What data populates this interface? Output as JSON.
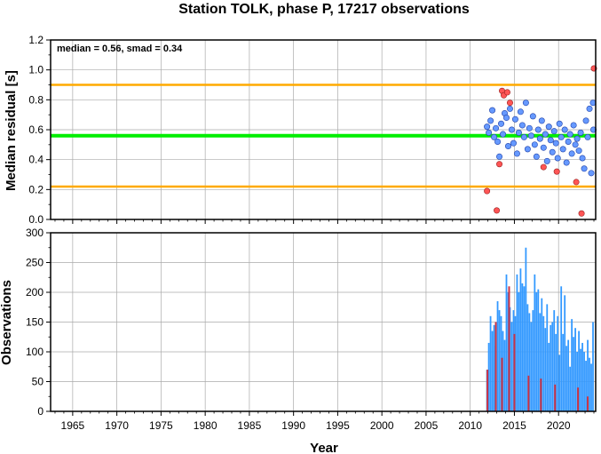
{
  "chart_data": [
    {
      "type": "scatter",
      "title": "Station TOLK, phase P, 17217 observations",
      "ylabel": "Median residual [s]",
      "annotation": "median = 0.56, smad = 0.34",
      "xlim": [
        1962.5,
        2024.2
      ],
      "ylim": [
        0,
        1.2
      ],
      "yticks": [
        "0.0",
        "0.2",
        "0.4",
        "0.6",
        "0.8",
        "1.0",
        "1.2"
      ],
      "grid": true,
      "colors": {
        "normal": "#6699ff",
        "outlier": "#ff5555",
        "median_line": "#00ee00",
        "bounds_line": "#ffaa00"
      },
      "median_line": 0.56,
      "bound_lines": [
        0.22,
        0.9
      ],
      "normal_points": [
        [
          2011.9,
          0.62
        ],
        [
          2012.1,
          0.58
        ],
        [
          2012.3,
          0.66
        ],
        [
          2012.5,
          0.73
        ],
        [
          2012.7,
          0.55
        ],
        [
          2012.9,
          0.61
        ],
        [
          2013.1,
          0.52
        ],
        [
          2013.3,
          0.42
        ],
        [
          2013.5,
          0.64
        ],
        [
          2013.7,
          0.57
        ],
        [
          2013.9,
          0.71
        ],
        [
          2014.1,
          0.68
        ],
        [
          2014.3,
          0.49
        ],
        [
          2014.5,
          0.74
        ],
        [
          2014.7,
          0.6
        ],
        [
          2014.9,
          0.51
        ],
        [
          2015.1,
          0.67
        ],
        [
          2015.3,
          0.44
        ],
        [
          2015.5,
          0.58
        ],
        [
          2015.7,
          0.72
        ],
        [
          2015.9,
          0.63
        ],
        [
          2016.1,
          0.55
        ],
        [
          2016.3,
          0.78
        ],
        [
          2016.5,
          0.47
        ],
        [
          2016.7,
          0.61
        ],
        [
          2016.9,
          0.56
        ],
        [
          2017.1,
          0.69
        ],
        [
          2017.3,
          0.5
        ],
        [
          2017.5,
          0.42
        ],
        [
          2017.7,
          0.6
        ],
        [
          2017.9,
          0.54
        ],
        [
          2018.1,
          0.66
        ],
        [
          2018.3,
          0.48
        ],
        [
          2018.5,
          0.57
        ],
        [
          2018.7,
          0.39
        ],
        [
          2018.9,
          0.62
        ],
        [
          2019.1,
          0.53
        ],
        [
          2019.3,
          0.45
        ],
        [
          2019.5,
          0.59
        ],
        [
          2019.7,
          0.51
        ],
        [
          2019.9,
          0.41
        ],
        [
          2020.1,
          0.64
        ],
        [
          2020.3,
          0.55
        ],
        [
          2020.5,
          0.47
        ],
        [
          2020.7,
          0.6
        ],
        [
          2020.9,
          0.38
        ],
        [
          2021.1,
          0.52
        ],
        [
          2021.3,
          0.57
        ],
        [
          2021.5,
          0.44
        ],
        [
          2021.7,
          0.63
        ],
        [
          2021.9,
          0.5
        ],
        [
          2022.1,
          0.54
        ],
        [
          2022.3,
          0.46
        ],
        [
          2022.5,
          0.58
        ],
        [
          2022.7,
          0.41
        ],
        [
          2022.9,
          0.34
        ],
        [
          2023.1,
          0.66
        ],
        [
          2023.3,
          0.55
        ],
        [
          2023.5,
          0.74
        ],
        [
          2023.7,
          0.31
        ],
        [
          2023.9,
          0.78
        ],
        [
          2023.95,
          0.6
        ]
      ],
      "outlier_points": [
        [
          2011.9,
          0.19
        ],
        [
          2013.0,
          0.06
        ],
        [
          2013.3,
          0.37
        ],
        [
          2013.6,
          0.86
        ],
        [
          2013.8,
          0.83
        ],
        [
          2014.2,
          0.85
        ],
        [
          2014.5,
          0.78
        ],
        [
          2018.3,
          0.35
        ],
        [
          2019.8,
          0.32
        ],
        [
          2022.0,
          0.25
        ],
        [
          2022.6,
          0.04
        ],
        [
          2024.0,
          1.01
        ]
      ]
    },
    {
      "type": "bar",
      "ylabel": "Observations",
      "xlabel": "Year",
      "xlim": [
        1962.5,
        2024.2
      ],
      "ylim": [
        0,
        300
      ],
      "yticks": [
        "0",
        "50",
        "100",
        "150",
        "200",
        "250",
        "300"
      ],
      "xticks": [
        "1965",
        "1970",
        "1975",
        "1980",
        "1985",
        "1990",
        "1995",
        "2000",
        "2005",
        "2010",
        "2015",
        "2020"
      ],
      "grid": true,
      "colors": {
        "all": "#3399ff",
        "outliers": "#cc3344"
      },
      "series": [
        {
          "x": [
            2011.9,
            2012.1,
            2012.3,
            2012.5,
            2012.7,
            2012.9,
            2013.1,
            2013.3,
            2013.5,
            2013.7,
            2013.9,
            2014.1,
            2014.3,
            2014.5,
            2014.7,
            2014.9,
            2015.1,
            2015.3,
            2015.5,
            2015.7,
            2015.9,
            2016.1,
            2016.3,
            2016.5,
            2016.7,
            2016.9,
            2017.1,
            2017.3,
            2017.5,
            2017.7,
            2017.9,
            2018.1,
            2018.3,
            2018.5,
            2018.7,
            2018.9,
            2019.1,
            2019.3,
            2019.5,
            2019.7,
            2019.9,
            2020.1,
            2020.3,
            2020.5,
            2020.7,
            2020.9,
            2021.1,
            2021.3,
            2021.5,
            2021.7,
            2021.9,
            2022.1,
            2022.3,
            2022.5,
            2022.7,
            2022.9,
            2023.1,
            2023.3,
            2023.5,
            2023.7,
            2023.9
          ],
          "values": [
            70,
            115,
            160,
            135,
            145,
            110,
            185,
            170,
            160,
            135,
            120,
            230,
            200,
            175,
            150,
            170,
            160,
            230,
            200,
            240,
            215,
            210,
            275,
            180,
            165,
            150,
            170,
            230,
            200,
            205,
            165,
            190,
            160,
            140,
            180,
            115,
            145,
            150,
            170,
            130,
            160,
            95,
            210,
            130,
            195,
            110,
            120,
            75,
            155,
            125,
            140,
            100,
            135,
            105,
            115,
            100,
            85,
            120,
            90,
            80,
            150
          ]
        },
        {
          "x": [
            2011.95,
            2012.9,
            2013.6,
            2014.4,
            2015.0,
            2016.6,
            2018.0,
            2019.6,
            2022.2,
            2023.3
          ],
          "values": [
            70,
            150,
            90,
            210,
            130,
            60,
            55,
            45,
            40,
            25
          ]
        }
      ]
    }
  ]
}
